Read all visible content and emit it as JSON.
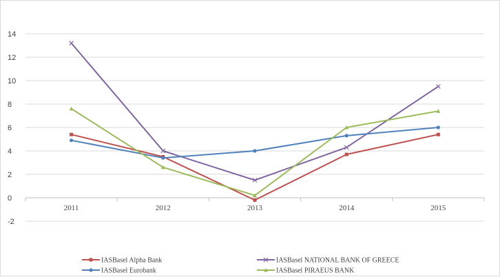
{
  "chart_data": {
    "type": "line",
    "categories": [
      "2011",
      "2012",
      "2013",
      "2014",
      "2015"
    ],
    "ylim": [
      -2,
      14
    ],
    "y_ticks": [
      -2,
      0,
      2,
      4,
      6,
      8,
      10,
      12,
      14
    ],
    "grid": true,
    "legend_position": "bottom",
    "series": [
      {
        "name": "IASBasel Alpha Bank",
        "color": "#c0504d",
        "marker": "square",
        "values": [
          5.4,
          3.5,
          -0.2,
          3.7,
          5.4
        ]
      },
      {
        "name": "IASBasel NATIONAL BANK OF GREECE",
        "color": "#8064a2",
        "marker": "x",
        "values": [
          13.2,
          4.0,
          1.5,
          4.3,
          9.5
        ]
      },
      {
        "name": "IASBasel Eurobank",
        "color": "#4f81bd",
        "marker": "circle",
        "values": [
          4.9,
          3.4,
          4.0,
          5.3,
          6.0
        ]
      },
      {
        "name": "IASBasel PIRAEUS BANK",
        "color": "#9bbb59",
        "marker": "triangle",
        "values": [
          7.6,
          2.6,
          0.2,
          6.0,
          7.4
        ]
      }
    ]
  }
}
